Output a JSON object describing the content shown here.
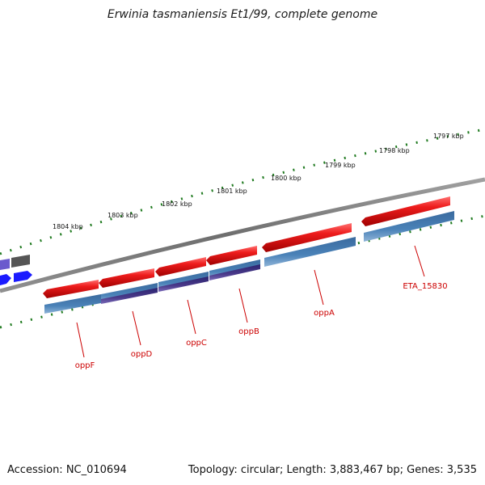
{
  "header": {
    "title": "Erwinia tasmaniensis Et1/99, complete genome"
  },
  "footer": {
    "accession": "Accession: NC_010694",
    "summary": "Topology: circular; Length: 3,883,467 bp; Genes: 3,535"
  },
  "ruler": {
    "labels": [
      "1804 kbp",
      "1803 kbp",
      "1802 kbp",
      "1801 kbp",
      "1800 kbp",
      "1799 kbp",
      "1798 kbp",
      "1797 kbp"
    ]
  },
  "genes": {
    "labels": [
      "oppF",
      "oppD",
      "oppC",
      "oppB",
      "oppA",
      "ETA_15830"
    ]
  },
  "colors": {
    "forward_gene": "#e8141a",
    "cds": "#4a82b8",
    "cds_dark": "#4a3a8a",
    "backbone": "#7a7a7a",
    "ruler_ticks": "#1f7a1f",
    "other_gene_blue": "#1a1aff",
    "other_gene_purple": "#6a5acd",
    "other_gene_gray": "#555555",
    "gene_label": "#cc0000"
  }
}
